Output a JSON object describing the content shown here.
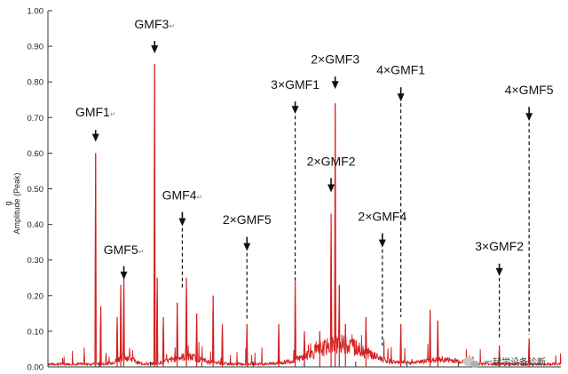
{
  "chart_data": {
    "type": "line",
    "title": "",
    "xlabel": "",
    "ylabel_unit": "g",
    "ylabel": "Amplitude (Peak)",
    "ylim": [
      0,
      1.0
    ],
    "yticks": [
      "0.00",
      "0.10",
      "0.20",
      "0.30",
      "0.40",
      "0.50",
      "0.60",
      "0.70",
      "0.80",
      "0.90",
      "1.00"
    ],
    "xlim": [
      0,
      1
    ],
    "x_ticks_labeled": false,
    "x_tick_positions": [
      0.1,
      0.2,
      0.3,
      0.4,
      0.5,
      0.6,
      0.7,
      0.8,
      0.9
    ],
    "series": [
      {
        "color": "#d42020",
        "peaks": [
          {
            "x": 0.093,
            "y": 0.6
          },
          {
            "x": 0.103,
            "y": 0.17
          },
          {
            "x": 0.135,
            "y": 0.14
          },
          {
            "x": 0.142,
            "y": 0.23
          },
          {
            "x": 0.148,
            "y": 0.25
          },
          {
            "x": 0.208,
            "y": 0.85
          },
          {
            "x": 0.213,
            "y": 0.25
          },
          {
            "x": 0.225,
            "y": 0.14
          },
          {
            "x": 0.252,
            "y": 0.18
          },
          {
            "x": 0.27,
            "y": 0.25
          },
          {
            "x": 0.29,
            "y": 0.15
          },
          {
            "x": 0.322,
            "y": 0.2
          },
          {
            "x": 0.34,
            "y": 0.12
          },
          {
            "x": 0.388,
            "y": 0.12
          },
          {
            "x": 0.45,
            "y": 0.12
          },
          {
            "x": 0.482,
            "y": 0.24
          },
          {
            "x": 0.5,
            "y": 0.1
          },
          {
            "x": 0.53,
            "y": 0.1
          },
          {
            "x": 0.552,
            "y": 0.43
          },
          {
            "x": 0.56,
            "y": 0.74
          },
          {
            "x": 0.568,
            "y": 0.23
          },
          {
            "x": 0.58,
            "y": 0.12
          },
          {
            "x": 0.62,
            "y": 0.14
          },
          {
            "x": 0.688,
            "y": 0.12
          },
          {
            "x": 0.745,
            "y": 0.16
          },
          {
            "x": 0.76,
            "y": 0.13
          },
          {
            "x": 0.88,
            "y": 0.06
          },
          {
            "x": 0.938,
            "y": 0.08
          }
        ]
      }
    ],
    "annotations": [
      {
        "label": "GMF1",
        "mark": "↵",
        "x": 0.093,
        "text_y": 0.703,
        "tip_y": 0.632,
        "arrow_top": 0.665,
        "dashed_to": null
      },
      {
        "label": "GMF5",
        "mark": "↵",
        "x": 0.148,
        "text_y": 0.317,
        "tip_y": 0.245,
        "arrow_top": 0.283,
        "dashed_to": null
      },
      {
        "label": "GMF3",
        "mark": "↵",
        "x": 0.208,
        "text_y": 0.95,
        "tip_y": 0.88,
        "arrow_top": 0.915,
        "dashed_to": null
      },
      {
        "label": "GMF4",
        "mark": "↵",
        "x": 0.262,
        "text_y": 0.47,
        "tip_y": 0.395,
        "arrow_top": 0.435,
        "dashed_to": 0.22
      },
      {
        "label": "2×GMF5",
        "mark": "",
        "x": 0.388,
        "text_y": 0.402,
        "tip_y": 0.325,
        "arrow_top": 0.365,
        "dashed_to": 0.13
      },
      {
        "label": "3×GMF1",
        "mark": "",
        "x": 0.482,
        "text_y": 0.78,
        "tip_y": 0.71,
        "arrow_top": 0.745,
        "dashed_to": 0.24
      },
      {
        "label": "2×GMF3",
        "mark": "",
        "x": 0.56,
        "text_y": 0.852,
        "tip_y": 0.78,
        "arrow_top": 0.815,
        "dashed_to": null
      },
      {
        "label": "2×GMF2",
        "mark": "",
        "x": 0.552,
        "text_y": 0.565,
        "tip_y": 0.49,
        "arrow_top": 0.53,
        "dashed_to": null
      },
      {
        "label": "4×GMF1",
        "mark": "",
        "x": 0.688,
        "text_y": 0.822,
        "tip_y": 0.745,
        "arrow_top": 0.785,
        "dashed_to": 0.14
      },
      {
        "label": "2×GMF4",
        "mark": "",
        "x": 0.652,
        "text_y": 0.41,
        "tip_y": 0.335,
        "arrow_top": 0.375,
        "dashed_to": 0.06
      },
      {
        "label": "3×GMF2",
        "mark": "",
        "x": 0.88,
        "text_y": 0.327,
        "tip_y": 0.255,
        "arrow_top": 0.29,
        "dashed_to": 0.08
      },
      {
        "label": "4×GMF5",
        "mark": "",
        "x": 0.938,
        "text_y": 0.765,
        "tip_y": 0.69,
        "arrow_top": 0.73,
        "dashed_to": 0.09
      }
    ]
  },
  "watermark": {
    "text": "一起学设备诊断",
    "icon": "wechat-icon"
  }
}
